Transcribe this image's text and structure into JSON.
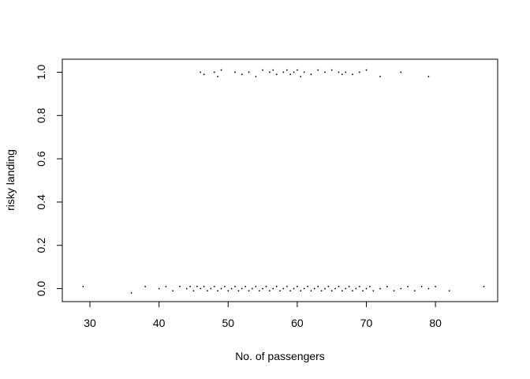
{
  "chart_data": {
    "type": "scatter",
    "title": "",
    "xlabel": "No. of passengers",
    "ylabel": "risky landing",
    "xlim": [
      26,
      89
    ],
    "ylim": [
      -0.06,
      1.06
    ],
    "xticks": [
      30,
      40,
      50,
      60,
      70,
      80
    ],
    "xtick_labels": [
      "30",
      "40",
      "50",
      "60",
      "70",
      "80"
    ],
    "yticks": [
      0.0,
      0.2,
      0.4,
      0.6,
      0.8,
      1.0
    ],
    "ytick_labels": [
      "0.0",
      "0.2",
      "0.4",
      "0.6",
      "0.8",
      "1.0"
    ],
    "grid": false,
    "legend": "none",
    "point_color": "#000000",
    "series": [
      {
        "points": [
          [
            29,
            0.01
          ],
          [
            36,
            -0.02
          ],
          [
            38,
            0.01
          ],
          [
            40,
            0.0
          ],
          [
            41,
            0.01
          ],
          [
            42,
            -0.01
          ],
          [
            43,
            0.01
          ],
          [
            44,
            0.0
          ],
          [
            44.5,
            0.01
          ],
          [
            45,
            -0.01
          ],
          [
            45.5,
            0.01
          ],
          [
            46,
            0.0
          ],
          [
            46.5,
            0.01
          ],
          [
            47,
            -0.01
          ],
          [
            47.5,
            0.0
          ],
          [
            48,
            0.01
          ],
          [
            48.5,
            -0.01
          ],
          [
            49,
            0.0
          ],
          [
            49.5,
            0.01
          ],
          [
            50,
            -0.01
          ],
          [
            50.5,
            0.0
          ],
          [
            51,
            0.01
          ],
          [
            51.5,
            -0.01
          ],
          [
            52,
            0.0
          ],
          [
            52.5,
            0.01
          ],
          [
            53,
            -0.01
          ],
          [
            53.5,
            0.0
          ],
          [
            54,
            0.01
          ],
          [
            54.5,
            -0.01
          ],
          [
            55,
            0.0
          ],
          [
            55.5,
            0.01
          ],
          [
            56,
            -0.01
          ],
          [
            56.5,
            0.0
          ],
          [
            57,
            0.01
          ],
          [
            57.5,
            -0.01
          ],
          [
            58,
            0.0
          ],
          [
            58.5,
            0.01
          ],
          [
            59,
            -0.01
          ],
          [
            59.5,
            0.0
          ],
          [
            60,
            0.01
          ],
          [
            60.5,
            -0.01
          ],
          [
            61,
            0.0
          ],
          [
            61.5,
            0.01
          ],
          [
            62,
            -0.01
          ],
          [
            62.5,
            0.0
          ],
          [
            63,
            0.01
          ],
          [
            63.5,
            -0.01
          ],
          [
            64,
            0.0
          ],
          [
            64.5,
            0.01
          ],
          [
            65,
            -0.01
          ],
          [
            65.5,
            0.0
          ],
          [
            66,
            0.01
          ],
          [
            66.5,
            -0.01
          ],
          [
            67,
            0.0
          ],
          [
            67.5,
            0.01
          ],
          [
            68,
            -0.01
          ],
          [
            68.5,
            0.0
          ],
          [
            69,
            0.01
          ],
          [
            69.5,
            -0.01
          ],
          [
            70,
            0.0
          ],
          [
            70.5,
            0.01
          ],
          [
            71,
            -0.01
          ],
          [
            72,
            0.0
          ],
          [
            73,
            0.01
          ],
          [
            74,
            -0.01
          ],
          [
            75,
            0.0
          ],
          [
            76,
            0.01
          ],
          [
            77,
            -0.01
          ],
          [
            78,
            0.01
          ],
          [
            79,
            0.0
          ],
          [
            80,
            0.01
          ],
          [
            82,
            -0.01
          ],
          [
            87,
            0.01
          ],
          [
            46,
            1.0
          ],
          [
            46.5,
            0.99
          ],
          [
            48,
            1.0
          ],
          [
            48.5,
            0.98
          ],
          [
            49,
            1.01
          ],
          [
            51,
            1.0
          ],
          [
            52,
            0.99
          ],
          [
            53,
            1.0
          ],
          [
            54,
            0.98
          ],
          [
            55,
            1.01
          ],
          [
            56,
            1.0
          ],
          [
            56.5,
            1.01
          ],
          [
            57,
            0.99
          ],
          [
            58,
            1.0
          ],
          [
            58.5,
            1.01
          ],
          [
            59,
            0.99
          ],
          [
            59.5,
            1.0
          ],
          [
            60,
            1.01
          ],
          [
            60.5,
            0.98
          ],
          [
            61,
            1.0
          ],
          [
            62,
            0.99
          ],
          [
            63,
            1.01
          ],
          [
            64,
            1.0
          ],
          [
            65,
            1.01
          ],
          [
            66,
            1.0
          ],
          [
            66.5,
            0.99
          ],
          [
            67,
            1.0
          ],
          [
            68,
            0.99
          ],
          [
            69,
            1.0
          ],
          [
            70,
            1.01
          ],
          [
            72,
            0.98
          ],
          [
            75,
            1.0
          ],
          [
            79,
            0.98
          ]
        ]
      }
    ]
  }
}
